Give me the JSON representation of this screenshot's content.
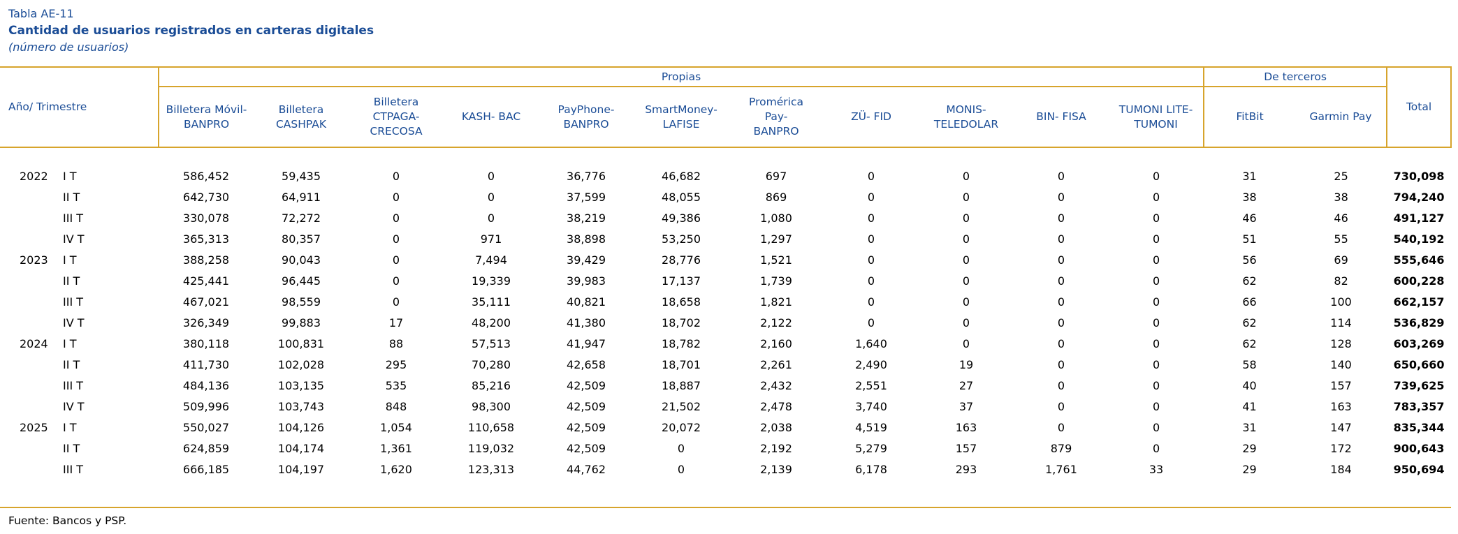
{
  "title": {
    "code": "Tabla AE-11",
    "name": "Cantidad de usuarios registrados en carteras digitales",
    "unit": "(número de usuarios)"
  },
  "source": "Fuente: Bancos y PSP.",
  "colors": {
    "header_blue": "#1A4C96",
    "border_gold": "#D7A42C",
    "body_text": "#000000"
  },
  "table": {
    "row_header": "Año/ Trimestre",
    "groups": [
      {
        "label": "Propias",
        "span": 11
      },
      {
        "label": "De terceros",
        "span": 2
      }
    ],
    "total_label": "Total",
    "columns": [
      "Billetera Móvil-\nBANPRO",
      "Billetera\nCASHPAK",
      "Billetera\nCTPAGA-\nCRECOSA",
      "KASH- BAC",
      "PayPhone-\nBANPRO",
      "SmartMoney-\nLAFISE",
      "Promérica\nPay-\nBANPRO",
      "ZÜ- FID",
      "MONIS-\nTELEDOLAR",
      "BIN- FISA",
      "TUMONI LITE-\nTUMONI",
      "FitBit",
      "Garmin Pay"
    ],
    "rows": [
      {
        "year": "2022",
        "quarter": "I T",
        "values": [
          "586,452",
          "59,435",
          "0",
          "0",
          "36,776",
          "46,682",
          "697",
          "0",
          "0",
          "0",
          "0",
          "31",
          "25"
        ],
        "total": "730,098"
      },
      {
        "year": "",
        "quarter": "II T",
        "values": [
          "642,730",
          "64,911",
          "0",
          "0",
          "37,599",
          "48,055",
          "869",
          "0",
          "0",
          "0",
          "0",
          "38",
          "38"
        ],
        "total": "794,240"
      },
      {
        "year": "",
        "quarter": "III T",
        "values": [
          "330,078",
          "72,272",
          "0",
          "0",
          "38,219",
          "49,386",
          "1,080",
          "0",
          "0",
          "0",
          "0",
          "46",
          "46"
        ],
        "total": "491,127"
      },
      {
        "year": "",
        "quarter": "IV T",
        "values": [
          "365,313",
          "80,357",
          "0",
          "971",
          "38,898",
          "53,250",
          "1,297",
          "0",
          "0",
          "0",
          "0",
          "51",
          "55"
        ],
        "total": "540,192"
      },
      {
        "year": "2023",
        "quarter": "I T",
        "values": [
          "388,258",
          "90,043",
          "0",
          "7,494",
          "39,429",
          "28,776",
          "1,521",
          "0",
          "0",
          "0",
          "0",
          "56",
          "69"
        ],
        "total": "555,646"
      },
      {
        "year": "",
        "quarter": "II T",
        "values": [
          "425,441",
          "96,445",
          "0",
          "19,339",
          "39,983",
          "17,137",
          "1,739",
          "0",
          "0",
          "0",
          "0",
          "62",
          "82"
        ],
        "total": "600,228"
      },
      {
        "year": "",
        "quarter": "III T",
        "values": [
          "467,021",
          "98,559",
          "0",
          "35,111",
          "40,821",
          "18,658",
          "1,821",
          "0",
          "0",
          "0",
          "0",
          "66",
          "100"
        ],
        "total": "662,157"
      },
      {
        "year": "",
        "quarter": "IV T",
        "values": [
          "326,349",
          "99,883",
          "17",
          "48,200",
          "41,380",
          "18,702",
          "2,122",
          "0",
          "0",
          "0",
          "0",
          "62",
          "114"
        ],
        "total": "536,829"
      },
      {
        "year": "2024",
        "quarter": "I T",
        "values": [
          "380,118",
          "100,831",
          "88",
          "57,513",
          "41,947",
          "18,782",
          "2,160",
          "1,640",
          "0",
          "0",
          "0",
          "62",
          "128"
        ],
        "total": "603,269"
      },
      {
        "year": "",
        "quarter": "II T",
        "values": [
          "411,730",
          "102,028",
          "295",
          "70,280",
          "42,658",
          "18,701",
          "2,261",
          "2,490",
          "19",
          "0",
          "0",
          "58",
          "140"
        ],
        "total": "650,660"
      },
      {
        "year": "",
        "quarter": "III T",
        "values": [
          "484,136",
          "103,135",
          "535",
          "85,216",
          "42,509",
          "18,887",
          "2,432",
          "2,551",
          "27",
          "0",
          "0",
          "40",
          "157"
        ],
        "total": "739,625"
      },
      {
        "year": "",
        "quarter": "IV T",
        "values": [
          "509,996",
          "103,743",
          "848",
          "98,300",
          "42,509",
          "21,502",
          "2,478",
          "3,740",
          "37",
          "0",
          "0",
          "41",
          "163"
        ],
        "total": "783,357"
      },
      {
        "year": "2025",
        "quarter": "I T",
        "values": [
          "550,027",
          "104,126",
          "1,054",
          "110,658",
          "42,509",
          "20,072",
          "2,038",
          "4,519",
          "163",
          "0",
          "0",
          "31",
          "147"
        ],
        "total": "835,344"
      },
      {
        "year": "",
        "quarter": "II T",
        "values": [
          "624,859",
          "104,174",
          "1,361",
          "119,032",
          "42,509",
          "0",
          "2,192",
          "5,279",
          "157",
          "879",
          "0",
          "29",
          "172"
        ],
        "total": "900,643"
      },
      {
        "year": "",
        "quarter": "III T",
        "values": [
          "666,185",
          "104,197",
          "1,620",
          "123,313",
          "44,762",
          "0",
          "2,139",
          "6,178",
          "293",
          "1,761",
          "33",
          "29",
          "184"
        ],
        "total": "950,694"
      }
    ]
  }
}
